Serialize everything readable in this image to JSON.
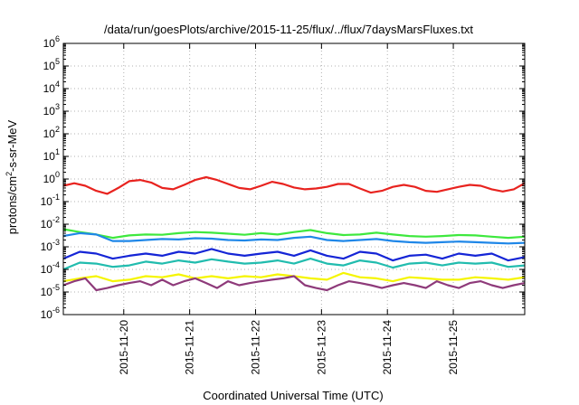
{
  "chart_data": {
    "type": "line",
    "title": "/data/run/goesPlots/archive/2015-11-25/flux/../flux/7daysMarsFluxes.txt",
    "xlabel": "Coordinated Universal Time (UTC)",
    "ylabel": "protons/cm²-s-sr-MeV",
    "ylabel_parts": {
      "base": "protons/cm",
      "sup": "2",
      "rest": "-s-sr-MeV"
    },
    "yscale": "log",
    "ylim": [
      1e-06,
      1000000.0
    ],
    "yticks": [
      {
        "base": "10",
        "exp": "-6",
        "value": 1e-06
      },
      {
        "base": "10",
        "exp": "-5",
        "value": 1e-05
      },
      {
        "base": "10",
        "exp": "-4",
        "value": 0.0001
      },
      {
        "base": "10",
        "exp": "-3",
        "value": 0.001
      },
      {
        "base": "10",
        "exp": "-2",
        "value": 0.01
      },
      {
        "base": "10",
        "exp": "-1",
        "value": 0.1
      },
      {
        "base": "10",
        "exp": "0",
        "value": 1
      },
      {
        "base": "10",
        "exp": "1",
        "value": 10
      },
      {
        "base": "10",
        "exp": "2",
        "value": 100
      },
      {
        "base": "10",
        "exp": "3",
        "value": 1000
      },
      {
        "base": "10",
        "exp": "4",
        "value": 10000
      },
      {
        "base": "10",
        "exp": "5",
        "value": 100000
      },
      {
        "base": "10",
        "exp": "6",
        "value": 1000000
      }
    ],
    "xlim": [
      "2015-11-19 02:00",
      "2015-11-26 02:00"
    ],
    "xticks": [
      "2015-11-20",
      "2015-11-21",
      "2015-11-22",
      "2015-11-23",
      "2015-11-24",
      "2015-11-25"
    ],
    "grid": true,
    "legend": "none",
    "series": [
      {
        "color": "#e8231f",
        "x": [
          "2015-11-19 02:00",
          "2015-11-19 06:00",
          "2015-11-19 10:00",
          "2015-11-19 14:00",
          "2015-11-19 18:00",
          "2015-11-19 22:00",
          "2015-11-20 02:00",
          "2015-11-20 06:00",
          "2015-11-20 10:00",
          "2015-11-20 14:00",
          "2015-11-20 18:00",
          "2015-11-20 22:00",
          "2015-11-21 02:00",
          "2015-11-21 06:00",
          "2015-11-21 10:00",
          "2015-11-21 14:00",
          "2015-11-21 18:00",
          "2015-11-21 22:00",
          "2015-11-22 02:00",
          "2015-11-22 06:00",
          "2015-11-22 10:00",
          "2015-11-22 14:00",
          "2015-11-22 18:00",
          "2015-11-22 22:00",
          "2015-11-23 02:00",
          "2015-11-23 06:00",
          "2015-11-23 10:00",
          "2015-11-23 14:00",
          "2015-11-23 18:00",
          "2015-11-23 22:00",
          "2015-11-24 02:00",
          "2015-11-24 06:00",
          "2015-11-24 10:00",
          "2015-11-24 14:00",
          "2015-11-24 18:00",
          "2015-11-24 22:00",
          "2015-11-25 02:00",
          "2015-11-25 06:00",
          "2015-11-25 10:00",
          "2015-11-25 14:00",
          "2015-11-25 18:00",
          "2015-11-25 22:00",
          "2015-11-26 02:00"
        ],
        "y": [
          0.5,
          0.65,
          0.5,
          0.3,
          0.22,
          0.4,
          0.8,
          0.9,
          0.7,
          0.4,
          0.35,
          0.55,
          0.9,
          1.2,
          0.9,
          0.6,
          0.4,
          0.35,
          0.5,
          0.75,
          0.6,
          0.42,
          0.35,
          0.38,
          0.45,
          0.6,
          0.6,
          0.38,
          0.25,
          0.3,
          0.45,
          0.55,
          0.45,
          0.3,
          0.27,
          0.35,
          0.45,
          0.55,
          0.5,
          0.35,
          0.28,
          0.35,
          0.65
        ]
      },
      {
        "color": "#3ee83e",
        "x": [
          "2015-11-19 02:00",
          "2015-11-19 08:00",
          "2015-11-19 14:00",
          "2015-11-19 20:00",
          "2015-11-20 02:00",
          "2015-11-20 08:00",
          "2015-11-20 14:00",
          "2015-11-20 20:00",
          "2015-11-21 02:00",
          "2015-11-21 08:00",
          "2015-11-21 14:00",
          "2015-11-21 20:00",
          "2015-11-22 02:00",
          "2015-11-22 08:00",
          "2015-11-22 14:00",
          "2015-11-22 20:00",
          "2015-11-23 02:00",
          "2015-11-23 08:00",
          "2015-11-23 14:00",
          "2015-11-23 20:00",
          "2015-11-24 02:00",
          "2015-11-24 08:00",
          "2015-11-24 14:00",
          "2015-11-24 20:00",
          "2015-11-25 02:00",
          "2015-11-25 08:00",
          "2015-11-25 14:00",
          "2015-11-25 20:00",
          "2015-11-26 02:00"
        ],
        "y": [
          0.006,
          0.0045,
          0.0035,
          0.0025,
          0.0032,
          0.0035,
          0.0034,
          0.004,
          0.0045,
          0.0042,
          0.0038,
          0.0034,
          0.004,
          0.0035,
          0.0045,
          0.0055,
          0.004,
          0.0033,
          0.0035,
          0.0042,
          0.0035,
          0.003,
          0.0028,
          0.003,
          0.0033,
          0.0032,
          0.0028,
          0.0025,
          0.0028
        ]
      },
      {
        "color": "#1f87e8",
        "x": [
          "2015-11-19 02:00",
          "2015-11-19 08:00",
          "2015-11-19 14:00",
          "2015-11-19 20:00",
          "2015-11-20 02:00",
          "2015-11-20 08:00",
          "2015-11-20 14:00",
          "2015-11-20 20:00",
          "2015-11-21 02:00",
          "2015-11-21 08:00",
          "2015-11-21 14:00",
          "2015-11-21 20:00",
          "2015-11-22 02:00",
          "2015-11-22 08:00",
          "2015-11-22 14:00",
          "2015-11-22 20:00",
          "2015-11-23 02:00",
          "2015-11-23 08:00",
          "2015-11-23 14:00",
          "2015-11-23 20:00",
          "2015-11-24 02:00",
          "2015-11-24 08:00",
          "2015-11-24 14:00",
          "2015-11-24 20:00",
          "2015-11-25 02:00",
          "2015-11-25 08:00",
          "2015-11-25 14:00",
          "2015-11-25 20:00",
          "2015-11-26 02:00"
        ],
        "y": [
          0.003,
          0.004,
          0.0035,
          0.0018,
          0.0018,
          0.002,
          0.0022,
          0.0021,
          0.0024,
          0.0023,
          0.002,
          0.0019,
          0.0021,
          0.002,
          0.0025,
          0.0028,
          0.002,
          0.0018,
          0.002,
          0.0022,
          0.0018,
          0.0016,
          0.0015,
          0.0016,
          0.0017,
          0.0016,
          0.0015,
          0.0014,
          0.0015
        ]
      },
      {
        "color": "#1525d6",
        "x": [
          "2015-11-19 02:00",
          "2015-11-19 08:00",
          "2015-11-19 14:00",
          "2015-11-19 20:00",
          "2015-11-20 02:00",
          "2015-11-20 08:00",
          "2015-11-20 14:00",
          "2015-11-20 20:00",
          "2015-11-21 02:00",
          "2015-11-21 08:00",
          "2015-11-21 14:00",
          "2015-11-21 20:00",
          "2015-11-22 02:00",
          "2015-11-22 08:00",
          "2015-11-22 14:00",
          "2015-11-22 20:00",
          "2015-11-23 02:00",
          "2015-11-23 08:00",
          "2015-11-23 14:00",
          "2015-11-23 20:00",
          "2015-11-24 02:00",
          "2015-11-24 08:00",
          "2015-11-24 14:00",
          "2015-11-24 20:00",
          "2015-11-25 02:00",
          "2015-11-25 08:00",
          "2015-11-25 14:00",
          "2015-11-25 20:00",
          "2015-11-26 02:00"
        ],
        "y": [
          0.0003,
          0.0006,
          0.0005,
          0.0003,
          0.0004,
          0.0005,
          0.0004,
          0.0006,
          0.0005,
          0.0008,
          0.0005,
          0.0004,
          0.0005,
          0.0006,
          0.0004,
          0.0007,
          0.0004,
          0.0003,
          0.0006,
          0.0005,
          0.00025,
          0.0004,
          0.00045,
          0.0003,
          0.0005,
          0.0004,
          0.0005,
          0.00025,
          0.00035
        ]
      },
      {
        "color": "#21bcae",
        "x": [
          "2015-11-19 02:00",
          "2015-11-19 08:00",
          "2015-11-19 14:00",
          "2015-11-19 20:00",
          "2015-11-20 02:00",
          "2015-11-20 08:00",
          "2015-11-20 14:00",
          "2015-11-20 20:00",
          "2015-11-21 02:00",
          "2015-11-21 08:00",
          "2015-11-21 14:00",
          "2015-11-21 20:00",
          "2015-11-22 02:00",
          "2015-11-22 08:00",
          "2015-11-22 14:00",
          "2015-11-22 20:00",
          "2015-11-23 02:00",
          "2015-11-23 08:00",
          "2015-11-23 14:00",
          "2015-11-23 20:00",
          "2015-11-24 02:00",
          "2015-11-24 08:00",
          "2015-11-24 14:00",
          "2015-11-24 20:00",
          "2015-11-25 02:00",
          "2015-11-25 08:00",
          "2015-11-25 14:00",
          "2015-11-25 20:00",
          "2015-11-26 02:00"
        ],
        "y": [
          0.0001,
          0.0002,
          0.00018,
          0.00013,
          0.00015,
          0.00022,
          0.00018,
          0.00025,
          0.0002,
          0.00028,
          0.00022,
          0.00018,
          0.0002,
          0.00025,
          0.00018,
          0.0003,
          0.00018,
          0.00015,
          0.00025,
          0.0002,
          0.00012,
          0.00018,
          0.0002,
          0.00015,
          0.0002,
          0.00018,
          0.0002,
          0.00013,
          0.00015
        ]
      },
      {
        "color": "#f5f500",
        "x": [
          "2015-11-19 02:00",
          "2015-11-19 08:00",
          "2015-11-19 14:00",
          "2015-11-19 20:00",
          "2015-11-20 02:00",
          "2015-11-20 08:00",
          "2015-11-20 14:00",
          "2015-11-20 20:00",
          "2015-11-21 02:00",
          "2015-11-21 08:00",
          "2015-11-21 14:00",
          "2015-11-21 20:00",
          "2015-11-22 02:00",
          "2015-11-22 08:00",
          "2015-11-22 14:00",
          "2015-11-22 20:00",
          "2015-11-23 02:00",
          "2015-11-23 08:00",
          "2015-11-23 14:00",
          "2015-11-23 20:00",
          "2015-11-24 02:00",
          "2015-11-24 08:00",
          "2015-11-24 14:00",
          "2015-11-24 20:00",
          "2015-11-25 02:00",
          "2015-11-25 08:00",
          "2015-11-25 14:00",
          "2015-11-25 20:00",
          "2015-11-26 02:00"
        ],
        "y": [
          3e-05,
          4e-05,
          5e-05,
          3e-05,
          3.5e-05,
          5e-05,
          4.5e-05,
          6e-05,
          4e-05,
          5e-05,
          4e-05,
          5e-05,
          4.5e-05,
          6e-05,
          5e-05,
          4e-05,
          3.5e-05,
          7e-05,
          4.5e-05,
          4e-05,
          3e-05,
          4.5e-05,
          4e-05,
          3.5e-05,
          3.5e-05,
          4.5e-05,
          4e-05,
          3.5e-05,
          4.5e-05
        ]
      },
      {
        "color": "#8e3a7a",
        "x": [
          "2015-11-19 02:00",
          "2015-11-19 06:00",
          "2015-11-19 10:00",
          "2015-11-19 14:00",
          "2015-11-19 18:00",
          "2015-11-19 22:00",
          "2015-11-20 02:00",
          "2015-11-20 06:00",
          "2015-11-20 10:00",
          "2015-11-20 14:00",
          "2015-11-20 18:00",
          "2015-11-20 22:00",
          "2015-11-21 02:00",
          "2015-11-21 06:00",
          "2015-11-21 10:00",
          "2015-11-21 14:00",
          "2015-11-21 18:00",
          "2015-11-21 22:00",
          "2015-11-22 02:00",
          "2015-11-22 06:00",
          "2015-11-22 10:00",
          "2015-11-22 14:00",
          "2015-11-22 18:00",
          "2015-11-22 22:00",
          "2015-11-23 02:00",
          "2015-11-23 06:00",
          "2015-11-23 10:00",
          "2015-11-23 14:00",
          "2015-11-23 18:00",
          "2015-11-23 22:00",
          "2015-11-24 02:00",
          "2015-11-24 06:00",
          "2015-11-24 10:00",
          "2015-11-24 14:00",
          "2015-11-24 18:00",
          "2015-11-24 22:00",
          "2015-11-25 02:00",
          "2015-11-25 06:00",
          "2015-11-25 10:00",
          "2015-11-25 14:00",
          "2015-11-25 18:00",
          "2015-11-25 22:00",
          "2015-11-26 02:00"
        ],
        "y": [
          2e-05,
          3e-05,
          4e-05,
          1.2e-05,
          1.5e-05,
          2e-05,
          2.5e-05,
          3e-05,
          2e-05,
          3.5e-05,
          2e-05,
          3e-05,
          4e-05,
          2.5e-05,
          1.5e-05,
          3e-05,
          2e-05,
          2.5e-05,
          3e-05,
          3.5e-05,
          4e-05,
          5e-05,
          2e-05,
          1.5e-05,
          1.2e-05,
          2e-05,
          3e-05,
          2.5e-05,
          2e-05,
          1.5e-05,
          2e-05,
          2.5e-05,
          2e-05,
          1.5e-05,
          3e-05,
          2e-05,
          1.5e-05,
          2.5e-05,
          3e-05,
          2e-05,
          1.5e-05,
          2e-05,
          2.5e-05
        ]
      }
    ]
  }
}
